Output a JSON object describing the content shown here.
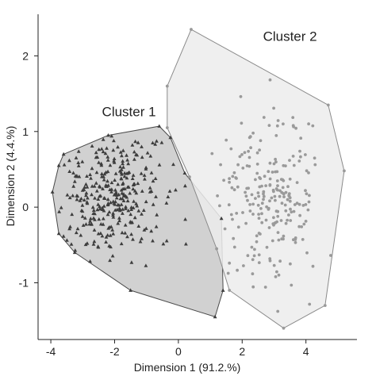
{
  "chart_data": {
    "type": "scatter",
    "xlabel": "Dimension 1 (91.2.%)",
    "ylabel": "Dimension 2 (4.4.%)",
    "xlim": [
      -4.4,
      5.6
    ],
    "ylim": [
      -1.75,
      2.55
    ],
    "xticks": [
      -4,
      -2,
      0,
      2,
      4
    ],
    "yticks": [
      -1,
      0,
      1,
      2
    ],
    "grid": false,
    "colors": {
      "cluster1_fill": "#c9c9c9",
      "cluster1_edge": "#4a4a4a",
      "cluster1_point": "#3d3d3d",
      "cluster2_fill": "#ececec",
      "cluster2_edge": "#8a8a8a",
      "cluster2_point": "#9a9a9a"
    },
    "clusters": [
      {
        "label": "Cluster 1",
        "marker": "triangle",
        "hull": [
          [
            -3.6,
            0.7
          ],
          [
            -2.2,
            0.95
          ],
          [
            -0.6,
            1.07
          ],
          [
            -0.25,
            0.92
          ],
          [
            0.2,
            0.45
          ],
          [
            1.35,
            -0.15
          ],
          [
            1.4,
            -1.1
          ],
          [
            1.15,
            -1.45
          ],
          [
            -1.5,
            -1.1
          ],
          [
            -3.25,
            -0.6
          ],
          [
            -3.75,
            -0.35
          ],
          [
            -3.95,
            0.2
          ],
          [
            -3.75,
            0.55
          ]
        ],
        "label_x": -1.55,
        "label_y": 1.2,
        "center": [
          -2.1,
          0.15
        ],
        "spread": [
          0.75,
          0.42
        ],
        "count": 320,
        "seed": 7
      },
      {
        "label": "Cluster 2",
        "marker": "circle",
        "hull": [
          [
            0.4,
            2.35
          ],
          [
            4.7,
            1.35
          ],
          [
            5.2,
            0.48
          ],
          [
            4.6,
            -1.3
          ],
          [
            3.3,
            -1.6
          ],
          [
            1.6,
            -1.1
          ],
          [
            1.2,
            -0.55
          ],
          [
            0.35,
            0.4
          ],
          [
            -0.35,
            1.05
          ],
          [
            -0.35,
            1.6
          ]
        ],
        "label_x": 3.5,
        "label_y": 2.2,
        "center": [
          2.9,
          0.1
        ],
        "spread": [
          0.8,
          0.58
        ],
        "count": 230,
        "seed": 13
      }
    ]
  }
}
